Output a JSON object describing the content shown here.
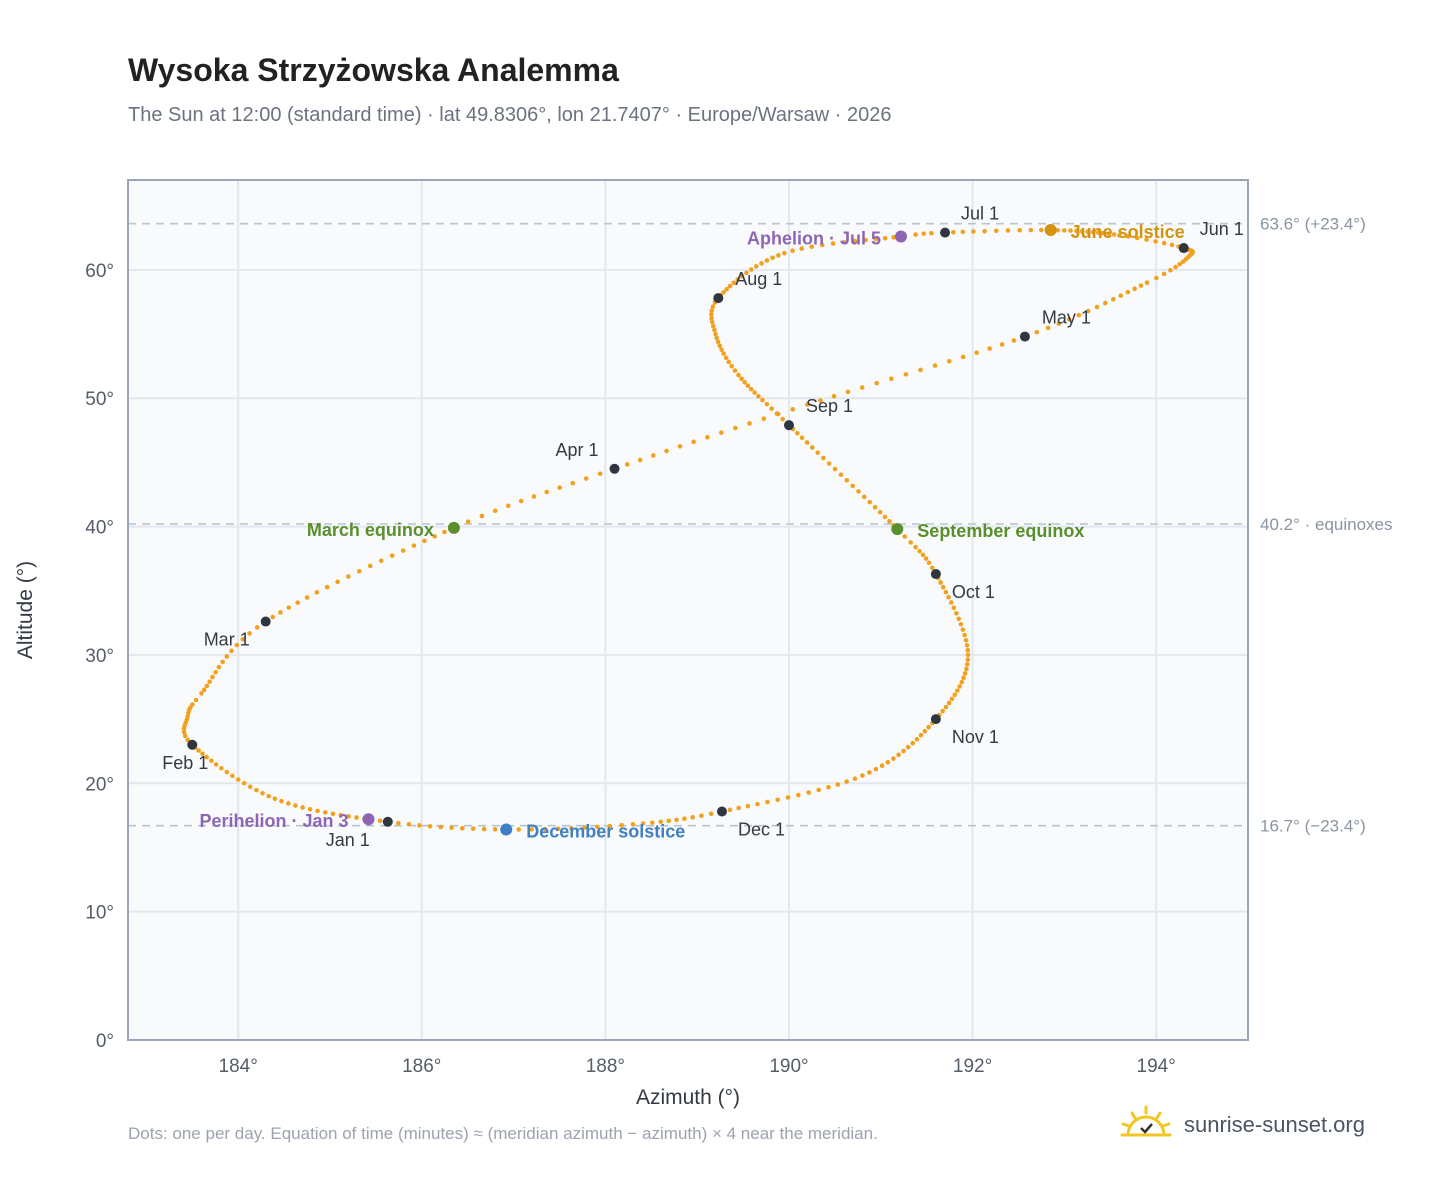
{
  "header": {
    "title": "Wysoka Strzyżowska Analemma",
    "subtitle": "The Sun at 12:00 (standard time) · lat 49.8306°, lon 21.7407° · Europe/Warsaw · 2026"
  },
  "footnote": "Dots: one per day. Equation of time (minutes) ≈ (meridian azimuth − azimuth) × 4 near the meridian.",
  "brand": {
    "name": "sunrise-sunset.org",
    "icon": "sun-logo-icon"
  },
  "colors": {
    "path": "#f2a11f",
    "month_marker": "#2f3640",
    "equinox": "#5a8f2e",
    "june_solstice": "#d4930a",
    "december_solstice": "#3f7fc4",
    "apsis": "#8e65b5",
    "ref_line": "#b9c4d0",
    "grid": "#e3e8ee",
    "plot_bg": "#f8fafc",
    "frame": "#9aa6b5"
  },
  "chart_data": {
    "type": "scatter",
    "xlabel": "Azimuth (°)",
    "ylabel": "Altitude (°)",
    "xlim": [
      182.8,
      195.0
    ],
    "ylim": [
      0,
      67
    ],
    "xticks": [
      184,
      186,
      188,
      190,
      192,
      194
    ],
    "yticks": [
      0,
      10,
      20,
      30,
      40,
      50,
      60
    ],
    "xtick_labels": [
      "184°",
      "186°",
      "188°",
      "190°",
      "192°",
      "194°"
    ],
    "ytick_labels": [
      "0°",
      "10°",
      "20°",
      "30°",
      "40°",
      "50°",
      "60°"
    ],
    "grid": true,
    "path_knots": [
      {
        "doy": 1,
        "az": 185.63,
        "alt": 17.0
      },
      {
        "doy": 16,
        "az": 184.4,
        "alt": 18.8
      },
      {
        "doy": 32,
        "az": 183.5,
        "alt": 23.0
      },
      {
        "doy": 40,
        "az": 183.45,
        "alt": 25.2
      },
      {
        "doy": 46,
        "az": 183.6,
        "alt": 27.0
      },
      {
        "doy": 60,
        "az": 184.3,
        "alt": 32.6
      },
      {
        "doy": 79,
        "az": 186.35,
        "alt": 39.9
      },
      {
        "doy": 91,
        "az": 188.1,
        "alt": 44.5
      },
      {
        "doy": 105,
        "az": 190.2,
        "alt": 49.5
      },
      {
        "doy": 121,
        "az": 192.57,
        "alt": 54.8
      },
      {
        "doy": 135,
        "az": 193.9,
        "alt": 59.0
      },
      {
        "doy": 143,
        "az": 194.35,
        "alt": 61.0
      },
      {
        "doy": 152,
        "az": 194.3,
        "alt": 61.7
      },
      {
        "doy": 160,
        "az": 193.6,
        "alt": 62.7
      },
      {
        "doy": 172,
        "az": 192.85,
        "alt": 63.1
      },
      {
        "doy": 182,
        "az": 191.7,
        "alt": 62.9
      },
      {
        "doy": 186,
        "az": 191.22,
        "alt": 62.6
      },
      {
        "doy": 198,
        "az": 189.95,
        "alt": 61.3
      },
      {
        "doy": 213,
        "az": 189.23,
        "alt": 57.8
      },
      {
        "doy": 222,
        "az": 189.2,
        "alt": 55.0
      },
      {
        "doy": 232,
        "az": 189.45,
        "alt": 51.8
      },
      {
        "doy": 244,
        "az": 190.0,
        "alt": 47.9
      },
      {
        "doy": 265,
        "az": 191.18,
        "alt": 39.8
      },
      {
        "doy": 274,
        "az": 191.6,
        "alt": 36.3
      },
      {
        "doy": 290,
        "az": 191.95,
        "alt": 30.0
      },
      {
        "doy": 305,
        "az": 191.6,
        "alt": 25.0
      },
      {
        "doy": 320,
        "az": 190.8,
        "alt": 20.6
      },
      {
        "doy": 335,
        "az": 189.27,
        "alt": 17.8
      },
      {
        "doy": 345,
        "az": 188.3,
        "alt": 16.8
      },
      {
        "doy": 355,
        "az": 186.92,
        "alt": 16.4
      },
      {
        "doy": 366,
        "az": 185.63,
        "alt": 17.0
      }
    ],
    "reference_lines": [
      {
        "alt": 63.6,
        "label": "63.6° (+23.4°)"
      },
      {
        "alt": 40.2,
        "label": "40.2° · equinoxes"
      },
      {
        "alt": 16.7,
        "label": "16.7° (−23.4°)"
      }
    ],
    "month_markers": [
      {
        "label": "Jan 1",
        "az": 185.63,
        "alt": 17.0,
        "anchor": "end",
        "dx": -18,
        "dy": 24
      },
      {
        "label": "Feb 1",
        "az": 183.5,
        "alt": 23.0,
        "anchor": "end",
        "dx": 16,
        "dy": 24
      },
      {
        "label": "Mar 1",
        "az": 184.3,
        "alt": 32.6,
        "anchor": "end",
        "dx": -16,
        "dy": 24
      },
      {
        "label": "Apr 1",
        "az": 188.1,
        "alt": 44.5,
        "anchor": "end",
        "dx": -16,
        "dy": -13
      },
      {
        "label": "May 1",
        "az": 192.57,
        "alt": 54.8,
        "anchor": "start",
        "dx": 17,
        "dy": -13
      },
      {
        "label": "Jun 1",
        "az": 194.3,
        "alt": 61.7,
        "anchor": "start",
        "dx": 16,
        "dy": -13
      },
      {
        "label": "Jul 1",
        "az": 191.7,
        "alt": 62.9,
        "anchor": "start",
        "dx": 16,
        "dy": -13
      },
      {
        "label": "Aug 1",
        "az": 189.23,
        "alt": 57.8,
        "anchor": "start",
        "dx": 17,
        "dy": -13
      },
      {
        "label": "Sep 1",
        "az": 190.0,
        "alt": 47.9,
        "anchor": "start",
        "dx": 17,
        "dy": -13
      },
      {
        "label": "Oct 1",
        "az": 191.6,
        "alt": 36.3,
        "anchor": "start",
        "dx": 16,
        "dy": 24
      },
      {
        "label": "Nov 1",
        "az": 191.6,
        "alt": 25.0,
        "anchor": "start",
        "dx": 16,
        "dy": 24
      },
      {
        "label": "Dec 1",
        "az": 189.27,
        "alt": 17.8,
        "anchor": "start",
        "dx": 16,
        "dy": 24
      }
    ],
    "events": [
      {
        "label": "March equinox",
        "az": 186.35,
        "alt": 39.9,
        "color_key": "equinox",
        "anchor": "end",
        "dx": -20,
        "dy": 8
      },
      {
        "label": "September equinox",
        "az": 191.18,
        "alt": 39.8,
        "color_key": "equinox",
        "anchor": "start",
        "dx": 20,
        "dy": 8
      },
      {
        "label": "June solstice",
        "az": 192.85,
        "alt": 63.1,
        "color_key": "june_solstice",
        "anchor": "start",
        "dx": 20,
        "dy": 8
      },
      {
        "label": "December solstice",
        "az": 186.92,
        "alt": 16.4,
        "color_key": "december_solstice",
        "anchor": "start",
        "dx": 20,
        "dy": 8
      },
      {
        "label": "Perihelion · Jan 3",
        "az": 185.42,
        "alt": 17.2,
        "color_key": "apsis",
        "anchor": "end",
        "dx": -20,
        "dy": 8
      },
      {
        "label": "Aphelion · Jul 5",
        "az": 191.22,
        "alt": 62.6,
        "color_key": "apsis",
        "anchor": "end",
        "dx": -20,
        "dy": 8
      }
    ]
  }
}
